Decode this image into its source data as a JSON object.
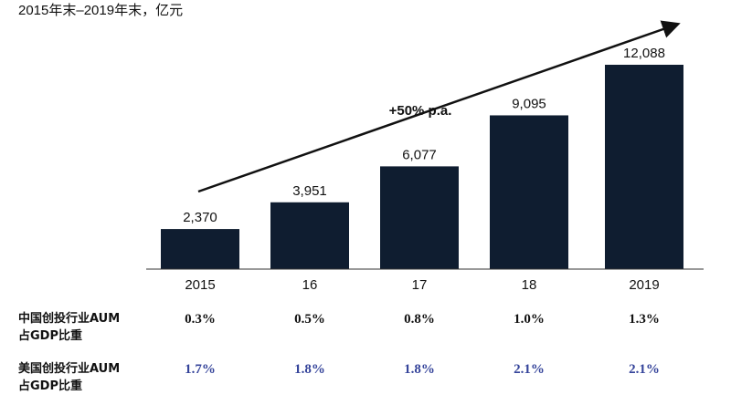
{
  "subtitle": "2015年末–2019年末，亿元",
  "chart_data": {
    "type": "bar",
    "categories": [
      "2015",
      "16",
      "17",
      "18",
      "2019"
    ],
    "values": [
      2370,
      3951,
      6077,
      9095,
      12088
    ],
    "value_labels": [
      "2,370",
      "3,951",
      "6,077",
      "9,095",
      "12,088"
    ],
    "annotation": "+50% p.a.",
    "grid": false,
    "colors": {
      "bar": "#0f1d30"
    }
  },
  "table": {
    "rows": [
      {
        "label": "中国创投行业AUM\n占GDP比重",
        "values": [
          "0.3%",
          "0.5%",
          "0.8%",
          "1.0%",
          "1.3%"
        ],
        "color": "#111111"
      },
      {
        "label": "美国创投行业AUM\n占GDP比重",
        "values": [
          "1.7%",
          "1.8%",
          "1.8%",
          "2.1%",
          "2.1%"
        ],
        "color": "#34439a"
      }
    ]
  }
}
